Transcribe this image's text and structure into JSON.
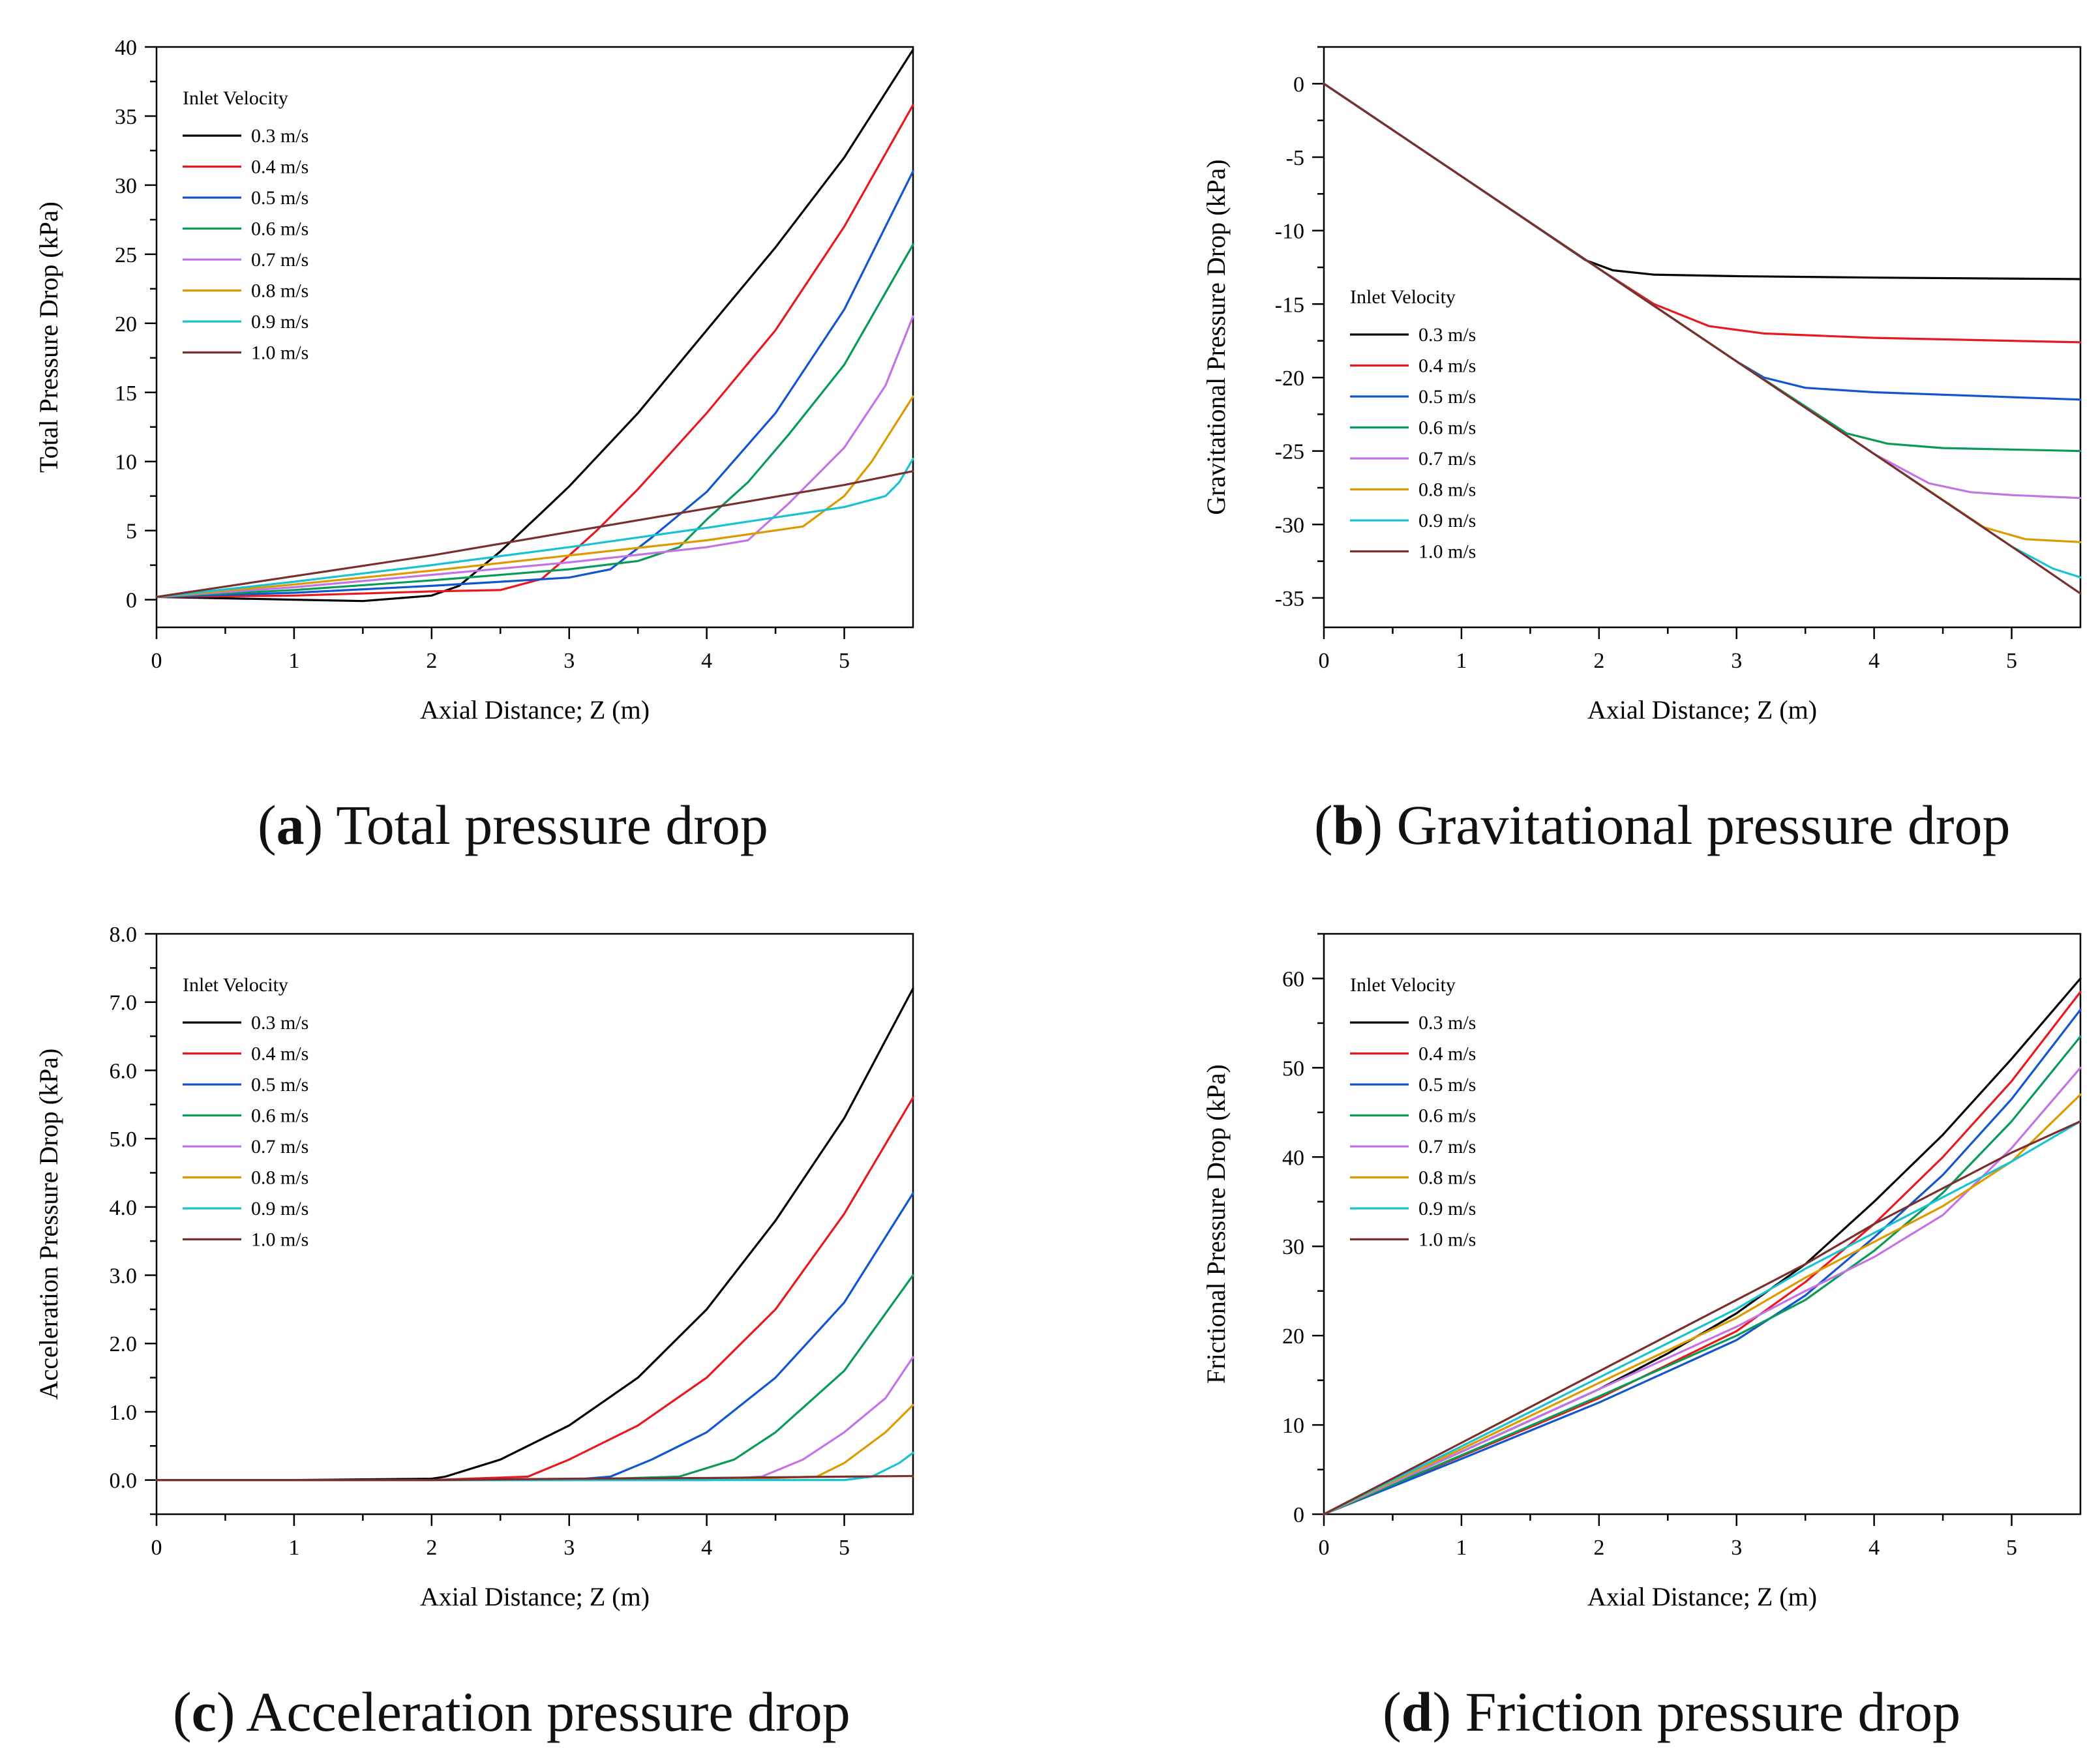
{
  "chart_data": [
    {
      "type": "line",
      "panel": "a",
      "caption_letter": "a",
      "caption_text": "Total pressure drop",
      "xlabel": "Axial Distance; Z (m)",
      "ylabel": "Total Pressure Drop (kPa)",
      "xlim": [
        0,
        5.5
      ],
      "ylim": [
        -2,
        40
      ],
      "xticks": [
        0,
        1,
        2,
        3,
        4,
        5
      ],
      "yticks": [
        0,
        5,
        10,
        15,
        20,
        25,
        30,
        35,
        40
      ],
      "ytick_labels": [
        "0",
        "5",
        "10",
        "15",
        "20",
        "25",
        "30",
        "35",
        "40"
      ],
      "grid": false,
      "legend_title": "Inlet Velocity",
      "legend_position": "top-left",
      "series": [
        {
          "name": "0.3 m/s",
          "color": "#000000",
          "x": [
            0,
            0.5,
            1.0,
            1.5,
            2.0,
            2.2,
            2.5,
            2.8,
            3.0,
            3.5,
            4.0,
            4.5,
            5.0,
            5.5
          ],
          "y": [
            0.2,
            0.1,
            0.0,
            -0.1,
            0.3,
            1.0,
            3.5,
            6.3,
            8.2,
            13.5,
            19.5,
            25.5,
            32.0,
            39.8
          ]
        },
        {
          "name": "0.4 m/s",
          "color": "#e8191e",
          "x": [
            0,
            1.0,
            2.0,
            2.5,
            2.8,
            3.0,
            3.2,
            3.5,
            4.0,
            4.5,
            5.0,
            5.5
          ],
          "y": [
            0.2,
            0.3,
            0.6,
            0.7,
            1.5,
            3.2,
            5.0,
            8.0,
            13.5,
            19.5,
            27.0,
            35.8
          ]
        },
        {
          "name": "0.5 m/s",
          "color": "#1155d0",
          "x": [
            0,
            1.0,
            2.0,
            2.5,
            3.0,
            3.3,
            3.6,
            4.0,
            4.5,
            5.0,
            5.5
          ],
          "y": [
            0.2,
            0.5,
            1.0,
            1.3,
            1.6,
            2.2,
            4.5,
            7.8,
            13.5,
            21.0,
            31.0
          ]
        },
        {
          "name": "0.6 m/s",
          "color": "#089b58",
          "x": [
            0,
            1.0,
            2.0,
            3.0,
            3.5,
            3.8,
            4.0,
            4.3,
            4.6,
            5.0,
            5.5
          ],
          "y": [
            0.2,
            0.7,
            1.4,
            2.2,
            2.8,
            3.8,
            5.8,
            8.5,
            12.0,
            17.0,
            25.7
          ]
        },
        {
          "name": "0.7 m/s",
          "color": "#c373e6",
          "x": [
            0,
            1.0,
            2.0,
            3.0,
            4.0,
            4.3,
            4.6,
            5.0,
            5.3,
            5.5
          ],
          "y": [
            0.2,
            0.9,
            1.8,
            2.7,
            3.8,
            4.3,
            7.0,
            11.0,
            15.5,
            20.5
          ]
        },
        {
          "name": "0.8 m/s",
          "color": "#dd9900",
          "x": [
            0,
            1.0,
            2.0,
            3.0,
            4.0,
            4.7,
            5.0,
            5.2,
            5.5
          ],
          "y": [
            0.2,
            1.1,
            2.1,
            3.2,
            4.3,
            5.3,
            7.5,
            10.0,
            14.7
          ]
        },
        {
          "name": "0.9 m/s",
          "color": "#17c2d2",
          "x": [
            0,
            1.0,
            2.0,
            3.0,
            4.0,
            5.0,
            5.3,
            5.4,
            5.5
          ],
          "y": [
            0.2,
            1.3,
            2.5,
            3.8,
            5.2,
            6.7,
            7.5,
            8.5,
            10.2
          ]
        },
        {
          "name": "1.0 m/s",
          "color": "#7a2f2f",
          "x": [
            0,
            1.0,
            2.0,
            3.0,
            4.0,
            5.0,
            5.5
          ],
          "y": [
            0.2,
            1.7,
            3.2,
            4.9,
            6.6,
            8.3,
            9.3
          ]
        }
      ]
    },
    {
      "type": "line",
      "panel": "b",
      "caption_letter": "b",
      "caption_text": "Gravitational pressure drop",
      "xlabel": "Axial Distance; Z (m)",
      "ylabel": "Gravitational Pressure Drop (kPa)",
      "xlim": [
        0,
        5.5
      ],
      "ylim": [
        -37,
        2.5
      ],
      "xticks": [
        0,
        1,
        2,
        3,
        4,
        5
      ],
      "yticks": [
        0,
        -5,
        -10,
        -15,
        -20,
        -25,
        -30,
        -35
      ],
      "ytick_labels": [
        "0",
        "-5",
        "-10",
        "-15",
        "-20",
        "-25",
        "-30",
        "-35"
      ],
      "grid": false,
      "legend_title": "Inlet Velocity",
      "legend_position": "center-left",
      "series": [
        {
          "name": "0.3 m/s",
          "color": "#000000",
          "x": [
            0,
            1.0,
            1.9,
            2.1,
            2.4,
            3.0,
            4.0,
            5.5
          ],
          "y": [
            0,
            -6.3,
            -12.0,
            -12.7,
            -13.0,
            -13.1,
            -13.2,
            -13.3
          ]
        },
        {
          "name": "0.4 m/s",
          "color": "#e8191e",
          "x": [
            0,
            1.0,
            2.0,
            2.4,
            2.8,
            3.2,
            4.0,
            5.5
          ],
          "y": [
            0,
            -6.3,
            -12.6,
            -15.0,
            -16.5,
            -17.0,
            -17.3,
            -17.6
          ]
        },
        {
          "name": "0.5 m/s",
          "color": "#1155d0",
          "x": [
            0,
            1.0,
            2.0,
            3.0,
            3.2,
            3.5,
            4.0,
            5.5
          ],
          "y": [
            0,
            -6.3,
            -12.6,
            -18.9,
            -20.0,
            -20.7,
            -21.0,
            -21.5
          ]
        },
        {
          "name": "0.6 m/s",
          "color": "#089b58",
          "x": [
            0,
            1.0,
            2.0,
            3.0,
            3.8,
            4.1,
            4.5,
            5.5
          ],
          "y": [
            0,
            -6.3,
            -12.6,
            -18.9,
            -23.8,
            -24.5,
            -24.8,
            -25.0
          ]
        },
        {
          "name": "0.7 m/s",
          "color": "#c373e6",
          "x": [
            0,
            1.0,
            2.0,
            3.0,
            4.0,
            4.4,
            4.7,
            5.0,
            5.5
          ],
          "y": [
            0,
            -6.3,
            -12.6,
            -18.9,
            -25.2,
            -27.2,
            -27.8,
            -28.0,
            -28.2
          ]
        },
        {
          "name": "0.8 m/s",
          "color": "#dd9900",
          "x": [
            0,
            1.0,
            2.0,
            3.0,
            4.0,
            4.8,
            5.1,
            5.5
          ],
          "y": [
            0,
            -6.3,
            -12.6,
            -18.9,
            -25.2,
            -30.2,
            -31.0,
            -31.2
          ]
        },
        {
          "name": "0.9 m/s",
          "color": "#17c2d2",
          "x": [
            0,
            1.0,
            2.0,
            3.0,
            4.0,
            5.0,
            5.3,
            5.5
          ],
          "y": [
            0,
            -6.3,
            -12.6,
            -18.9,
            -25.2,
            -31.5,
            -33.0,
            -33.6
          ]
        },
        {
          "name": "1.0 m/s",
          "color": "#7a2f2f",
          "x": [
            0,
            1.0,
            2.0,
            3.0,
            4.0,
            5.0,
            5.5
          ],
          "y": [
            0,
            -6.3,
            -12.6,
            -18.9,
            -25.2,
            -31.5,
            -34.7
          ]
        }
      ]
    },
    {
      "type": "line",
      "panel": "c",
      "caption_letter": "c",
      "caption_text": "Acceleration pressure drop",
      "xlabel": "Axial Distance; Z (m)",
      "ylabel": "Acceleration Pressure Drop (kPa)",
      "xlim": [
        0,
        5.5
      ],
      "ylim": [
        -0.5,
        8.0
      ],
      "xticks": [
        0,
        1,
        2,
        3,
        4,
        5
      ],
      "yticks": [
        0,
        1,
        2,
        3,
        4,
        5,
        6,
        7,
        8
      ],
      "ytick_labels": [
        "0.0",
        "1.0",
        "2.0",
        "3.0",
        "4.0",
        "5.0",
        "6.0",
        "7.0",
        "8.0"
      ],
      "grid": false,
      "legend_title": "Inlet Velocity",
      "legend_position": "top-left",
      "series": [
        {
          "name": "0.3 m/s",
          "color": "#000000",
          "x": [
            0,
            1.0,
            2.0,
            2.1,
            2.5,
            3.0,
            3.5,
            4.0,
            4.5,
            5.0,
            5.5
          ],
          "y": [
            0,
            0,
            0.02,
            0.05,
            0.3,
            0.8,
            1.5,
            2.5,
            3.8,
            5.3,
            7.2
          ]
        },
        {
          "name": "0.4 m/s",
          "color": "#e8191e",
          "x": [
            0,
            1.0,
            2.0,
            2.7,
            3.0,
            3.5,
            4.0,
            4.5,
            5.0,
            5.5
          ],
          "y": [
            0,
            0,
            0,
            0.05,
            0.3,
            0.8,
            1.5,
            2.5,
            3.9,
            5.6
          ]
        },
        {
          "name": "0.5 m/s",
          "color": "#1155d0",
          "x": [
            0,
            1.0,
            2.0,
            3.0,
            3.3,
            3.6,
            4.0,
            4.5,
            5.0,
            5.5
          ],
          "y": [
            0,
            0,
            0,
            0,
            0.05,
            0.3,
            0.7,
            1.5,
            2.6,
            4.2
          ]
        },
        {
          "name": "0.6 m/s",
          "color": "#089b58",
          "x": [
            0,
            1.0,
            2.0,
            3.0,
            3.8,
            4.2,
            4.5,
            5.0,
            5.5
          ],
          "y": [
            0,
            0,
            0,
            0,
            0.05,
            0.3,
            0.7,
            1.6,
            3.0
          ]
        },
        {
          "name": "0.7 m/s",
          "color": "#c373e6",
          "x": [
            0,
            1.0,
            2.0,
            3.0,
            4.0,
            4.4,
            4.7,
            5.0,
            5.3,
            5.5
          ],
          "y": [
            0,
            0,
            0,
            0,
            0,
            0.05,
            0.3,
            0.7,
            1.2,
            1.8
          ]
        },
        {
          "name": "0.8 m/s",
          "color": "#dd9900",
          "x": [
            0,
            1.0,
            2.0,
            3.0,
            4.0,
            4.8,
            5.0,
            5.3,
            5.5
          ],
          "y": [
            0,
            0,
            0,
            0,
            0,
            0.05,
            0.25,
            0.7,
            1.1
          ]
        },
        {
          "name": "0.9 m/s",
          "color": "#17c2d2",
          "x": [
            0,
            1.0,
            2.0,
            3.0,
            4.0,
            5.0,
            5.2,
            5.4,
            5.5
          ],
          "y": [
            0,
            0,
            0,
            0,
            0,
            0,
            0.05,
            0.25,
            0.4
          ]
        },
        {
          "name": "1.0 m/s",
          "color": "#7a2f2f",
          "x": [
            0,
            1.0,
            2.0,
            3.0,
            4.0,
            5.0,
            5.5
          ],
          "y": [
            0,
            0,
            0,
            0.02,
            0.03,
            0.05,
            0.06
          ]
        }
      ]
    },
    {
      "type": "line",
      "panel": "d",
      "caption_letter": "d",
      "caption_text": "Friction pressure drop",
      "xlabel": "Axial Distance; Z (m)",
      "ylabel": "Frictional Pressure Drop (kPa)",
      "xlim": [
        0,
        5.5
      ],
      "ylim": [
        0,
        65
      ],
      "xticks": [
        0,
        1,
        2,
        3,
        4,
        5
      ],
      "yticks": [
        0,
        10,
        20,
        30,
        40,
        50,
        60
      ],
      "ytick_labels": [
        "0",
        "10",
        "20",
        "30",
        "40",
        "50",
        "60"
      ],
      "grid": false,
      "legend_title": "Inlet Velocity",
      "legend_position": "top-left",
      "series": [
        {
          "name": "0.3 m/s",
          "color": "#000000",
          "x": [
            0,
            1.0,
            2.0,
            2.5,
            3.0,
            3.5,
            4.0,
            4.5,
            5.0,
            5.5
          ],
          "y": [
            0,
            7.0,
            14.0,
            18.0,
            22.5,
            28.0,
            35.0,
            42.5,
            51.0,
            60.0
          ]
        },
        {
          "name": "0.4 m/s",
          "color": "#e8191e",
          "x": [
            0,
            1.0,
            2.0,
            3.0,
            3.5,
            4.0,
            4.5,
            5.0,
            5.5
          ],
          "y": [
            0,
            6.5,
            13.0,
            20.5,
            26.0,
            32.5,
            40.0,
            48.5,
            58.5
          ]
        },
        {
          "name": "0.5 m/s",
          "color": "#1155d0",
          "x": [
            0,
            1.0,
            2.0,
            3.0,
            3.5,
            4.0,
            4.5,
            5.0,
            5.5
          ],
          "y": [
            0,
            6.2,
            12.5,
            19.5,
            24.5,
            31.0,
            38.0,
            46.5,
            56.5
          ]
        },
        {
          "name": "0.6 m/s",
          "color": "#089b58",
          "x": [
            0,
            1.0,
            2.0,
            3.0,
            3.5,
            4.0,
            4.5,
            5.0,
            5.5
          ],
          "y": [
            0,
            6.6,
            13.2,
            20.0,
            24.0,
            29.5,
            36.0,
            44.0,
            53.5
          ]
        },
        {
          "name": "0.7 m/s",
          "color": "#c373e6",
          "x": [
            0,
            1.0,
            2.0,
            3.0,
            3.5,
            4.0,
            4.5,
            5.0,
            5.5
          ],
          "y": [
            0,
            7.0,
            14.0,
            21.0,
            25.0,
            28.8,
            33.5,
            41.0,
            50.0
          ]
        },
        {
          "name": "0.8 m/s",
          "color": "#dd9900",
          "x": [
            0,
            1.0,
            2.0,
            3.0,
            3.5,
            4.0,
            4.5,
            5.0,
            5.5
          ],
          "y": [
            0,
            7.3,
            14.7,
            22.0,
            26.5,
            30.5,
            34.5,
            39.5,
            47.0
          ]
        },
        {
          "name": "0.9 m/s",
          "color": "#17c2d2",
          "x": [
            0,
            1.0,
            2.0,
            3.0,
            3.5,
            4.0,
            4.5,
            5.0,
            5.5
          ],
          "y": [
            0,
            7.6,
            15.3,
            23.0,
            27.5,
            31.5,
            35.5,
            39.5,
            44.0
          ]
        },
        {
          "name": "1.0 m/s",
          "color": "#7a2f2f",
          "x": [
            0,
            1.0,
            2.0,
            3.0,
            3.5,
            4.0,
            4.5,
            5.0,
            5.5
          ],
          "y": [
            0,
            8.0,
            16.0,
            24.0,
            28.0,
            32.5,
            36.5,
            40.5,
            44.0
          ]
        }
      ]
    }
  ]
}
